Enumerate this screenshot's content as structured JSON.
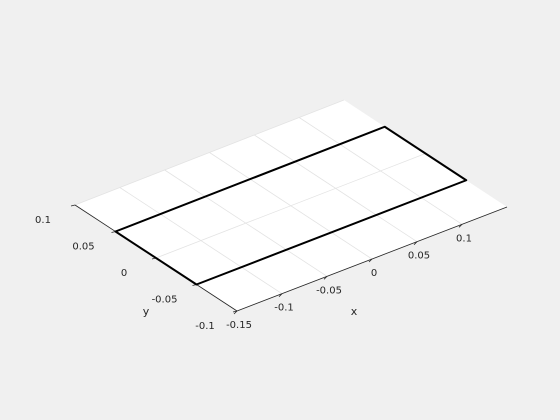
{
  "chart_data": {
    "type": "line3d",
    "title": "",
    "xlabel": "x",
    "ylabel": "y",
    "zlabel": "",
    "grid": true,
    "xlim": [
      -0.15,
      0.15
    ],
    "ylim": [
      -0.1,
      0.1
    ],
    "x_ticks": [
      -0.15,
      -0.1,
      -0.05,
      0,
      0.05,
      0.1
    ],
    "x_tick_labels": [
      "-0.15",
      "-0.1",
      "-0.05",
      "0",
      "0.05",
      "0.1"
    ],
    "y_ticks": [
      -0.1,
      -0.05,
      0,
      0.05,
      0.1
    ],
    "y_tick_labels": [
      "-0.1",
      "-0.05",
      "0",
      "0.05",
      "0.1"
    ],
    "series": [
      {
        "color": "#000000",
        "x": [
          -0.15,
          0.15,
          0.15,
          -0.15,
          -0.15
        ],
        "y": [
          0.05,
          0.05,
          -0.05,
          -0.05,
          0.05
        ]
      }
    ]
  }
}
